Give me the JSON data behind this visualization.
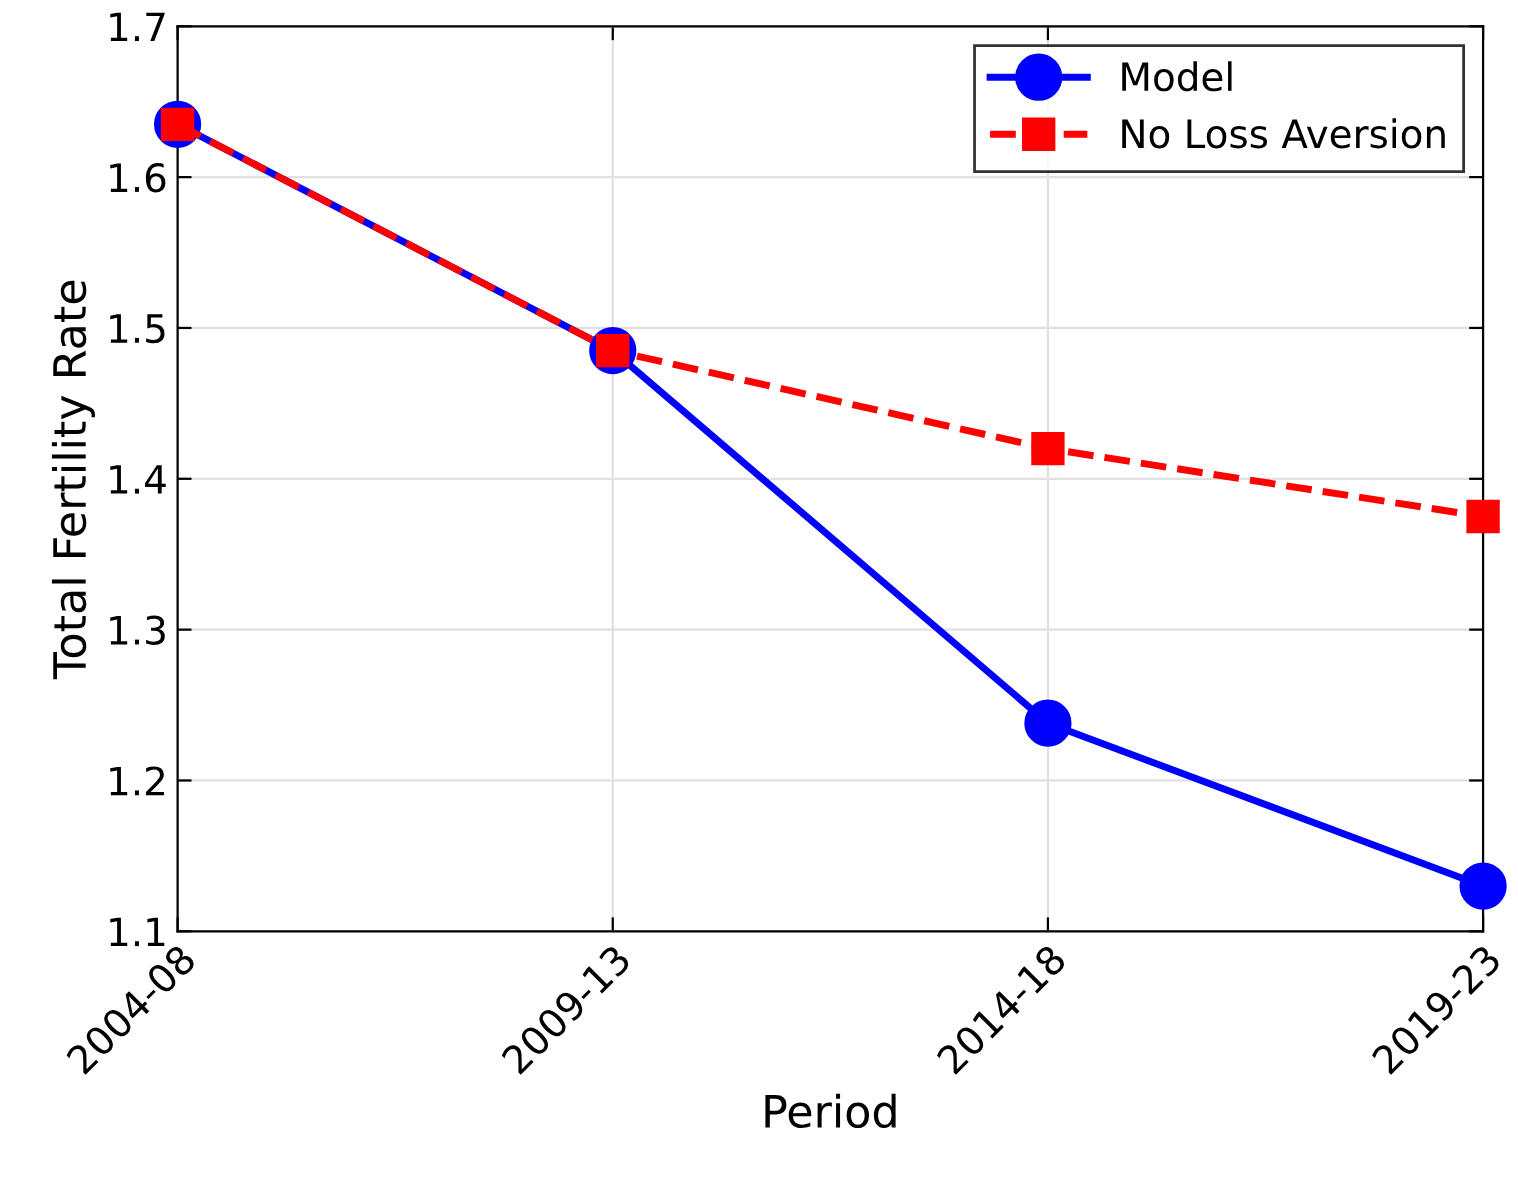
{
  "chart_data": {
    "type": "line",
    "xlabel": "Period",
    "ylabel": "Total Fertility Rate",
    "categories": [
      "2004-08",
      "2009-13",
      "2014-18",
      "2019-23"
    ],
    "series": [
      {
        "name": "Model",
        "color": "#0000ff",
        "values": [
          1.635,
          1.485,
          1.238,
          1.13
        ],
        "marker": "circle",
        "line_style": "solid"
      },
      {
        "name": "No Loss Aversion",
        "color": "#ff0000",
        "values": [
          1.635,
          1.485,
          1.42,
          1.375
        ],
        "marker": "square",
        "line_style": "dashed"
      }
    ],
    "ylim": [
      1.1,
      1.7
    ],
    "yticks": [
      1.1,
      1.2,
      1.3,
      1.4,
      1.5,
      1.6,
      1.7
    ],
    "grid": true,
    "legend": "top right"
  }
}
